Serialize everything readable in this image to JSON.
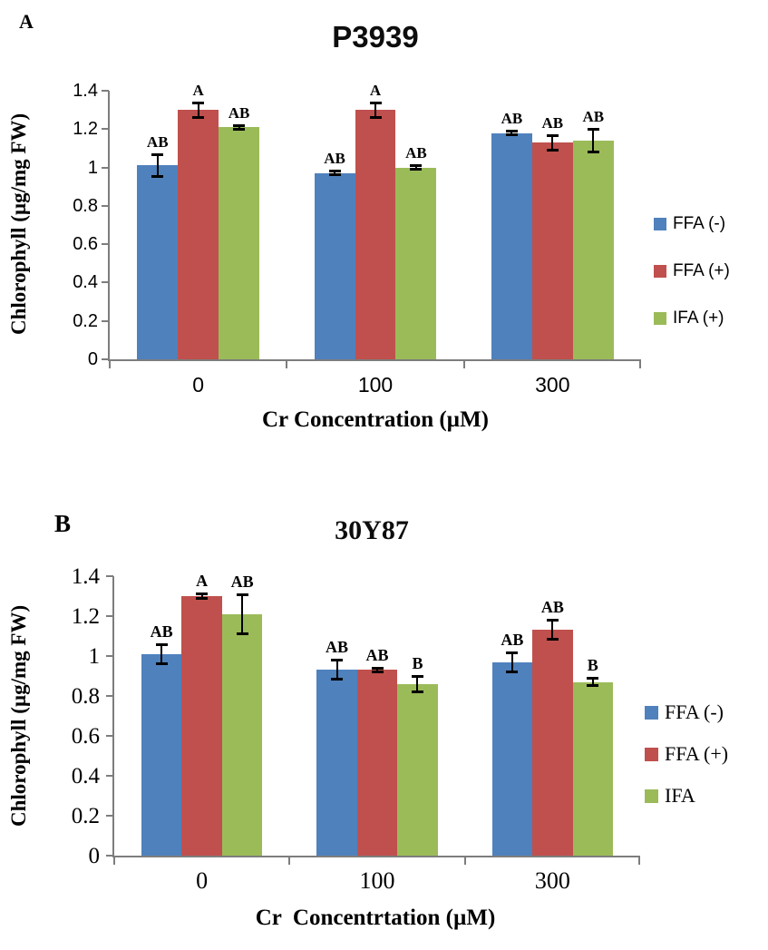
{
  "figure": {
    "background": "#ffffff",
    "axis_color": "#7d7d7d"
  },
  "chart_data": [
    {
      "type": "bar",
      "panel_letter": "A",
      "title": "P3939",
      "ylabel": "Chlorophyll (µg/mg FW)",
      "xlabel": "Cr Concentration (µM)",
      "categories": [
        "0",
        "100",
        "300"
      ],
      "ylim": [
        0,
        1.4
      ],
      "yticks": [
        "0",
        "0.2",
        "0.4",
        "0.6",
        "0.8",
        "1",
        "1.2",
        "1.4"
      ],
      "grid": false,
      "legend_position": "right",
      "series": [
        {
          "name": "FFA (-)",
          "color": "#4F81BD",
          "values": [
            1.01,
            0.97,
            1.18
          ],
          "errors": [
            0.06,
            0.012,
            0.012
          ],
          "letters": [
            "AB",
            "AB",
            "AB"
          ]
        },
        {
          "name": "FFA (+)",
          "color": "#C0504D",
          "values": [
            1.3,
            1.3,
            1.13
          ],
          "errors": [
            0.04,
            0.04,
            0.04
          ],
          "letters": [
            "A",
            "A",
            "AB"
          ]
        },
        {
          "name": "IFA (+)",
          "color": "#9BBB59",
          "values": [
            1.21,
            1.0,
            1.14
          ],
          "errors": [
            0.012,
            0.012,
            0.06
          ],
          "letters": [
            "AB",
            "AB",
            "AB"
          ]
        }
      ]
    },
    {
      "type": "bar",
      "panel_letter": "B",
      "title": "30Y87",
      "ylabel": "Chlorophyll (µg/mg FW)",
      "xlabel": "Cr  Concentrtation (µM)",
      "categories": [
        "0",
        "100",
        "300"
      ],
      "ylim": [
        0,
        1.4
      ],
      "yticks": [
        "0",
        "0.2",
        "0.4",
        "0.6",
        "0.8",
        "1",
        "1.2",
        "1.4"
      ],
      "grid": false,
      "legend_position": "right",
      "series": [
        {
          "name": "FFA (-)",
          "color": "#4F81BD",
          "values": [
            1.01,
            0.93,
            0.97
          ],
          "errors": [
            0.05,
            0.05,
            0.05
          ],
          "letters": [
            "AB",
            "AB",
            "AB"
          ]
        },
        {
          "name": "FFA (+)",
          "color": "#C0504D",
          "values": [
            1.3,
            0.93,
            1.13
          ],
          "errors": [
            0.012,
            0.012,
            0.05
          ],
          "letters": [
            "A",
            "AB",
            "AB"
          ]
        },
        {
          "name": "IFA",
          "color": "#9BBB59",
          "values": [
            1.21,
            0.86,
            0.87
          ],
          "errors": [
            0.1,
            0.04,
            0.02
          ],
          "letters": [
            "AB",
            "B",
            "B"
          ]
        }
      ]
    }
  ]
}
